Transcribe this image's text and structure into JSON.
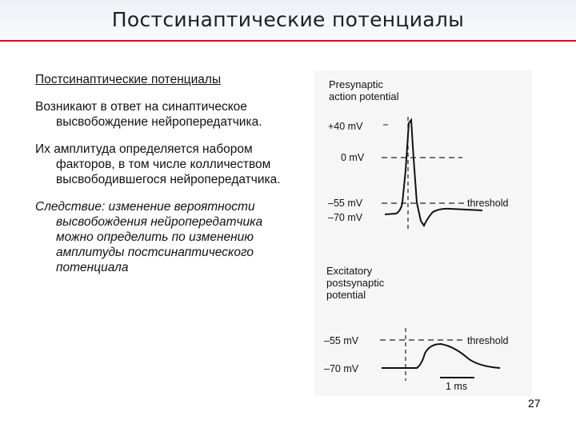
{
  "slide": {
    "title": "Постсинаптические потенциалы",
    "page_number": "27",
    "accent_color": "#c8102e"
  },
  "body": {
    "heading": "Постсинаптические потенциалы",
    "paragraph1": "Возникают в ответ на синаптическое высвобождение нейропередатчика.",
    "paragraph2": "Их амплитуда определяется набором факторов, в том числе колличеством высвободившегося нейропередатчика.",
    "paragraph3": "Следствие: изменение вероятности высвобождения нейропередатчика можно определить по изменению амплитуды постсинаптического потенциала"
  },
  "figure": {
    "top_panel": {
      "title_line1": "Presynaptic",
      "title_line2": "action potential",
      "labels": [
        "+40 mV",
        "0 mV",
        "–55 mV",
        "–70 mV"
      ],
      "threshold_label": "threshold"
    },
    "bottom_panel": {
      "title_line1": "Excitatory",
      "title_line2": "postsynaptic",
      "title_line3": "potential",
      "labels": [
        "–55 mV",
        "–70 mV"
      ],
      "threshold_label": "threshold",
      "scale_label": "1 ms"
    }
  }
}
